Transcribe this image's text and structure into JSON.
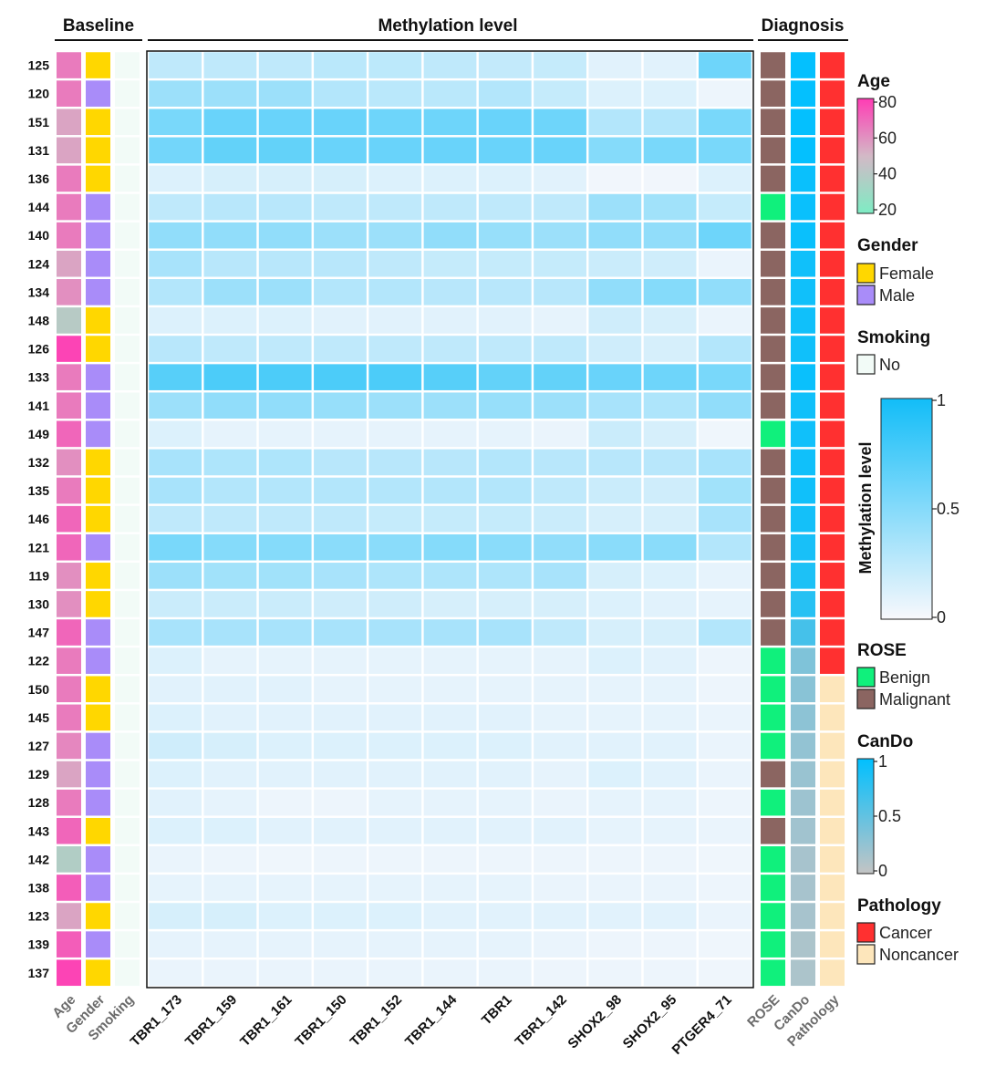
{
  "chart_data": {
    "type": "heatmap",
    "headers": {
      "baseline": "Baseline",
      "methylation": "Methylation level",
      "diagnosis": "Diagnosis"
    },
    "rows": [
      "125",
      "120",
      "151",
      "131",
      "136",
      "144",
      "140",
      "124",
      "134",
      "148",
      "126",
      "133",
      "141",
      "149",
      "132",
      "135",
      "146",
      "121",
      "119",
      "130",
      "147",
      "122",
      "150",
      "145",
      "127",
      "129",
      "128",
      "143",
      "142",
      "138",
      "123",
      "139",
      "137"
    ],
    "columns": [
      "TBR1_173",
      "TBR1_159",
      "TBR1_161",
      "TBR1_150",
      "TBR1_152",
      "TBR1_144",
      "TBR1",
      "TBR1_142",
      "SHOX2_98",
      "SHOX2_95",
      "PTGER4_71"
    ],
    "values": [
      [
        0.25,
        0.25,
        0.25,
        0.27,
        0.26,
        0.25,
        0.23,
        0.22,
        0.1,
        0.1,
        0.6
      ],
      [
        0.4,
        0.4,
        0.4,
        0.3,
        0.27,
        0.27,
        0.3,
        0.22,
        0.12,
        0.12,
        0.05
      ],
      [
        0.55,
        0.62,
        0.62,
        0.62,
        0.6,
        0.6,
        0.62,
        0.6,
        0.3,
        0.3,
        0.55
      ],
      [
        0.58,
        0.65,
        0.65,
        0.62,
        0.62,
        0.62,
        0.62,
        0.62,
        0.5,
        0.55,
        0.55
      ],
      [
        0.12,
        0.15,
        0.15,
        0.15,
        0.12,
        0.12,
        0.12,
        0.1,
        0.03,
        0.03,
        0.12
      ],
      [
        0.25,
        0.28,
        0.28,
        0.25,
        0.25,
        0.25,
        0.25,
        0.25,
        0.4,
        0.38,
        0.22
      ],
      [
        0.45,
        0.45,
        0.45,
        0.4,
        0.4,
        0.45,
        0.42,
        0.4,
        0.45,
        0.45,
        0.6
      ],
      [
        0.35,
        0.28,
        0.28,
        0.28,
        0.25,
        0.22,
        0.22,
        0.22,
        0.2,
        0.18,
        0.06
      ],
      [
        0.3,
        0.4,
        0.4,
        0.3,
        0.3,
        0.28,
        0.28,
        0.28,
        0.45,
        0.5,
        0.45
      ],
      [
        0.12,
        0.12,
        0.12,
        0.1,
        0.1,
        0.1,
        0.1,
        0.08,
        0.18,
        0.15,
        0.06
      ],
      [
        0.28,
        0.25,
        0.25,
        0.25,
        0.25,
        0.25,
        0.25,
        0.25,
        0.18,
        0.15,
        0.3
      ],
      [
        0.7,
        0.75,
        0.75,
        0.75,
        0.75,
        0.7,
        0.65,
        0.65,
        0.62,
        0.6,
        0.55
      ],
      [
        0.4,
        0.45,
        0.45,
        0.42,
        0.4,
        0.4,
        0.42,
        0.4,
        0.35,
        0.32,
        0.45
      ],
      [
        0.12,
        0.08,
        0.08,
        0.08,
        0.08,
        0.08,
        0.08,
        0.06,
        0.2,
        0.15,
        0.04
      ],
      [
        0.35,
        0.32,
        0.32,
        0.28,
        0.28,
        0.28,
        0.3,
        0.28,
        0.28,
        0.28,
        0.35
      ],
      [
        0.35,
        0.3,
        0.3,
        0.3,
        0.3,
        0.3,
        0.3,
        0.25,
        0.2,
        0.18,
        0.38
      ],
      [
        0.25,
        0.25,
        0.25,
        0.25,
        0.22,
        0.22,
        0.22,
        0.2,
        0.15,
        0.15,
        0.35
      ],
      [
        0.55,
        0.5,
        0.5,
        0.48,
        0.48,
        0.5,
        0.48,
        0.45,
        0.48,
        0.48,
        0.3
      ],
      [
        0.4,
        0.38,
        0.38,
        0.35,
        0.32,
        0.32,
        0.32,
        0.35,
        0.15,
        0.12,
        0.08
      ],
      [
        0.2,
        0.2,
        0.2,
        0.18,
        0.18,
        0.15,
        0.15,
        0.15,
        0.12,
        0.1,
        0.08
      ],
      [
        0.35,
        0.35,
        0.35,
        0.35,
        0.35,
        0.35,
        0.35,
        0.25,
        0.15,
        0.15,
        0.3
      ],
      [
        0.12,
        0.08,
        0.08,
        0.08,
        0.08,
        0.08,
        0.08,
        0.08,
        0.12,
        0.1,
        0.05
      ],
      [
        0.1,
        0.1,
        0.1,
        0.08,
        0.08,
        0.08,
        0.08,
        0.08,
        0.08,
        0.08,
        0.05
      ],
      [
        0.12,
        0.1,
        0.1,
        0.1,
        0.1,
        0.1,
        0.1,
        0.08,
        0.08,
        0.08,
        0.06
      ],
      [
        0.18,
        0.15,
        0.12,
        0.12,
        0.12,
        0.12,
        0.12,
        0.1,
        0.1,
        0.1,
        0.06
      ],
      [
        0.12,
        0.1,
        0.1,
        0.1,
        0.1,
        0.1,
        0.1,
        0.08,
        0.12,
        0.1,
        0.06
      ],
      [
        0.1,
        0.08,
        0.05,
        0.05,
        0.08,
        0.08,
        0.08,
        0.06,
        0.08,
        0.08,
        0.05
      ],
      [
        0.12,
        0.12,
        0.1,
        0.1,
        0.1,
        0.1,
        0.1,
        0.1,
        0.08,
        0.08,
        0.06
      ],
      [
        0.06,
        0.05,
        0.04,
        0.05,
        0.05,
        0.05,
        0.05,
        0.05,
        0.05,
        0.05,
        0.04
      ],
      [
        0.08,
        0.08,
        0.08,
        0.08,
        0.08,
        0.08,
        0.08,
        0.06,
        0.06,
        0.06,
        0.05
      ],
      [
        0.15,
        0.15,
        0.12,
        0.12,
        0.12,
        0.1,
        0.1,
        0.1,
        0.1,
        0.1,
        0.06
      ],
      [
        0.08,
        0.08,
        0.08,
        0.08,
        0.08,
        0.08,
        0.08,
        0.06,
        0.05,
        0.05,
        0.04
      ],
      [
        0.06,
        0.06,
        0.06,
        0.06,
        0.06,
        0.06,
        0.06,
        0.05,
        0.05,
        0.05,
        0.04
      ]
    ],
    "age": [
      65,
      65,
      55,
      55,
      65,
      65,
      65,
      55,
      60,
      40,
      78,
      65,
      65,
      70,
      60,
      65,
      70,
      70,
      60,
      60,
      70,
      65,
      65,
      65,
      62,
      55,
      65,
      70,
      38,
      72,
      55,
      72,
      78
    ],
    "gender": [
      "Female",
      "Male",
      "Female",
      "Female",
      "Female",
      "Male",
      "Male",
      "Male",
      "Male",
      "Female",
      "Female",
      "Male",
      "Male",
      "Male",
      "Female",
      "Female",
      "Female",
      "Male",
      "Female",
      "Female",
      "Male",
      "Male",
      "Female",
      "Female",
      "Male",
      "Male",
      "Male",
      "Female",
      "Male",
      "Male",
      "Female",
      "Male",
      "Female"
    ],
    "smoking": [
      "No",
      "No",
      "No",
      "No",
      "No",
      "No",
      "No",
      "No",
      "No",
      "No",
      "No",
      "No",
      "No",
      "No",
      "No",
      "No",
      "No",
      "No",
      "No",
      "No",
      "No",
      "No",
      "No",
      "No",
      "No",
      "No",
      "No",
      "No",
      "No",
      "No",
      "No",
      "No",
      "No"
    ],
    "rose": [
      "Malignant",
      "Malignant",
      "Malignant",
      "Malignant",
      "Malignant",
      "Benign",
      "Malignant",
      "Malignant",
      "Malignant",
      "Malignant",
      "Malignant",
      "Malignant",
      "Malignant",
      "Benign",
      "Malignant",
      "Malignant",
      "Malignant",
      "Malignant",
      "Malignant",
      "Malignant",
      "Malignant",
      "Benign",
      "Benign",
      "Benign",
      "Benign",
      "Malignant",
      "Benign",
      "Malignant",
      "Benign",
      "Benign",
      "Benign",
      "Benign",
      "Benign"
    ],
    "cando": [
      0.98,
      0.98,
      0.98,
      0.98,
      0.95,
      0.95,
      0.95,
      0.92,
      0.92,
      0.92,
      0.92,
      0.95,
      0.92,
      0.92,
      0.92,
      0.92,
      0.9,
      0.88,
      0.85,
      0.8,
      0.65,
      0.35,
      0.3,
      0.28,
      0.25,
      0.22,
      0.2,
      0.18,
      0.15,
      0.15,
      0.15,
      0.12,
      0.12
    ],
    "pathology": [
      "Cancer",
      "Cancer",
      "Cancer",
      "Cancer",
      "Cancer",
      "Cancer",
      "Cancer",
      "Cancer",
      "Cancer",
      "Cancer",
      "Cancer",
      "Cancer",
      "Cancer",
      "Cancer",
      "Cancer",
      "Cancer",
      "Cancer",
      "Cancer",
      "Cancer",
      "Cancer",
      "Cancer",
      "Cancer",
      "Noncancer",
      "Noncancer",
      "Noncancer",
      "Noncancer",
      "Noncancer",
      "Noncancer",
      "Noncancer",
      "Noncancer",
      "Noncancer",
      "Noncancer",
      "Noncancer"
    ],
    "side_columns_left": [
      "Age",
      "Gender",
      "Smoking"
    ],
    "side_columns_right": [
      "ROSE",
      "CanDo",
      "Pathology"
    ],
    "legend": {
      "age": {
        "title": "Age",
        "ticks": [
          "80",
          "60",
          "40",
          "20"
        ],
        "range": [
          20,
          80
        ]
      },
      "gender": {
        "title": "Gender",
        "items": [
          "Female",
          "Male"
        ]
      },
      "smoking": {
        "title": "Smoking",
        "items": [
          "No"
        ]
      },
      "methylation": {
        "title": "Methylation level",
        "ticks": [
          "1",
          "0.5",
          "0"
        ],
        "range": [
          0,
          1
        ]
      },
      "rose": {
        "title": "ROSE",
        "items": [
          "Benign",
          "Malignant"
        ]
      },
      "cando": {
        "title": "CanDo",
        "ticks": [
          "1",
          "0.5",
          "0"
        ],
        "range": [
          0,
          1
        ]
      },
      "pathology": {
        "title": "Pathology",
        "items": [
          "Cancer",
          "Noncancer"
        ]
      }
    },
    "colors": {
      "methyl_low": "#f8f8fc",
      "methyl_high": "#12bdf8",
      "age_low": "#7eecc4",
      "age_mid": "#d3b9c6",
      "age_high": "#ff3cb4",
      "female": "#ffd700",
      "male": "#a98cf9",
      "smoking_no": "#f2fbf7",
      "benign": "#10f07c",
      "malignant": "#8b6561",
      "cando_low": "#c4c4c4",
      "cando_high": "#00c0ff",
      "cancer": "#ff3030",
      "noncancer": "#fde6bb"
    }
  }
}
